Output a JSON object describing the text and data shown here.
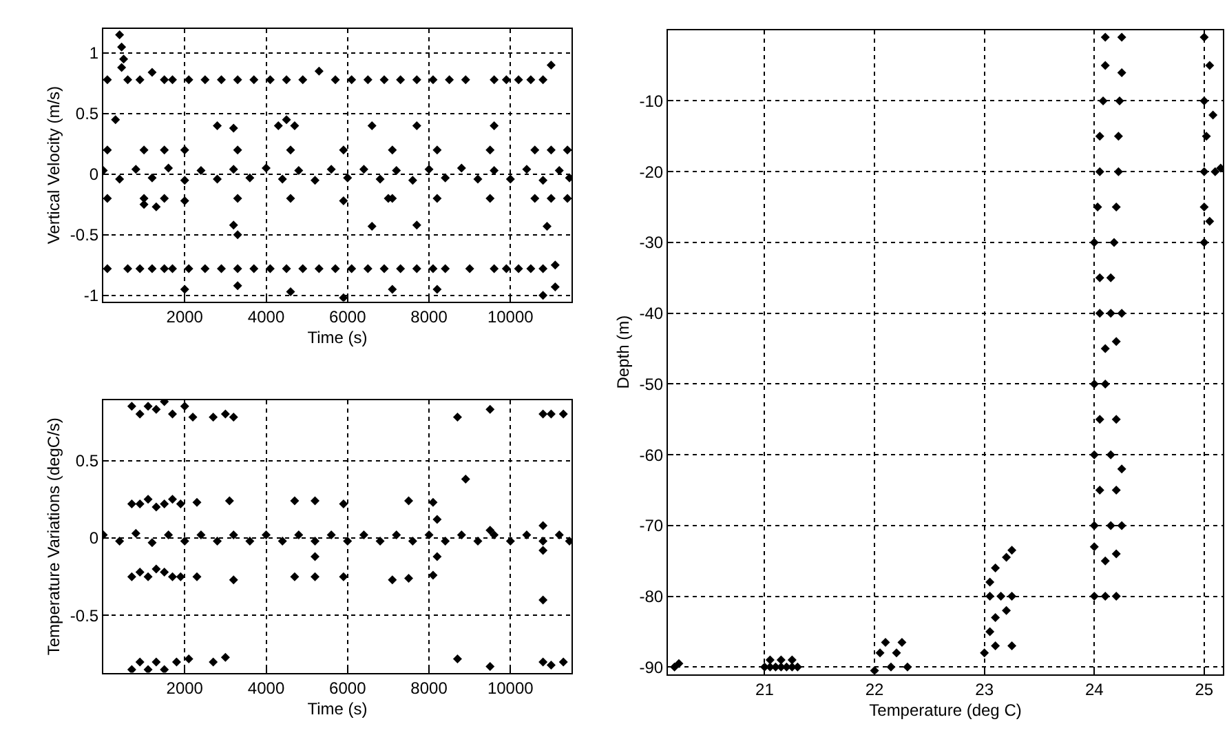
{
  "chart_data": [
    {
      "type": "scatter",
      "xlabel": "Time (s)",
      "ylabel": "Vertical Velocity (m/s)",
      "xlim": [
        0,
        11500
      ],
      "ylim": [
        -1.05,
        1.2
      ],
      "xticks": [
        2000,
        4000,
        6000,
        8000,
        10000
      ],
      "yticks": [
        -1,
        -0.5,
        0,
        0.5,
        1
      ],
      "grid": true,
      "marker": "diamond",
      "series": [
        {
          "color": "#000000",
          "x": [
            100,
            600,
            900,
            1200,
            1500,
            1700,
            2100,
            2500,
            2900,
            3300,
            3700,
            4100,
            4500,
            4900,
            5300,
            5700,
            6100,
            6500,
            6900,
            7300,
            7700,
            8100,
            8500,
            8900,
            9600,
            9900,
            10200,
            10500,
            10800,
            11000,
            400,
            450,
            500,
            450,
            0,
            400,
            800,
            1200,
            1600,
            2000,
            2400,
            2800,
            3200,
            3600,
            4000,
            4400,
            4800,
            5200,
            5600,
            6000,
            6400,
            6800,
            7200,
            7600,
            8000,
            8400,
            8800,
            9200,
            9600,
            10000,
            10400,
            10800,
            11200,
            11450,
            100,
            100,
            1000,
            1000,
            1500,
            1500,
            2000,
            2000,
            3300,
            3300,
            4600,
            4600,
            5900,
            5900,
            7100,
            7100,
            8200,
            8200,
            9500,
            9500,
            10600,
            10600,
            11000,
            11000,
            11400,
            11400,
            100,
            600,
            900,
            1200,
            1500,
            1700,
            2100,
            2500,
            2900,
            3300,
            3700,
            4100,
            4500,
            4900,
            5300,
            5700,
            6100,
            6500,
            6900,
            7300,
            7700,
            8100,
            8400,
            9000,
            9600,
            9900,
            10200,
            10500,
            10800,
            2000,
            3300,
            4600,
            5900,
            7100,
            8200,
            10800,
            11100,
            300,
            2800,
            3200,
            4300,
            4500,
            4700,
            6600,
            7700,
            9600,
            3200,
            3300,
            6600,
            7700,
            10900,
            1000,
            1300,
            7000,
            11100
          ],
          "values": [
            0.78,
            0.78,
            0.78,
            0.84,
            0.78,
            0.78,
            0.78,
            0.78,
            0.78,
            0.78,
            0.78,
            0.78,
            0.78,
            0.78,
            0.85,
            0.78,
            0.78,
            0.78,
            0.78,
            0.78,
            0.78,
            0.78,
            0.78,
            0.78,
            0.78,
            0.78,
            0.78,
            0.78,
            0.78,
            0.9,
            1.15,
            1.05,
            0.95,
            0.88,
            0.03,
            -0.04,
            0.04,
            -0.03,
            0.05,
            -0.05,
            0.03,
            -0.04,
            0.04,
            -0.03,
            0.05,
            -0.04,
            0.03,
            -0.05,
            0.04,
            -0.03,
            0.04,
            -0.04,
            0.03,
            -0.05,
            0.04,
            -0.03,
            0.05,
            -0.04,
            0.03,
            -0.04,
            0.04,
            -0.05,
            0.03,
            -0.03,
            0.2,
            -0.2,
            0.2,
            -0.2,
            0.2,
            -0.2,
            0.2,
            -0.22,
            0.2,
            -0.2,
            0.2,
            -0.2,
            0.2,
            -0.22,
            0.2,
            -0.2,
            0.2,
            -0.2,
            0.2,
            -0.2,
            0.2,
            -0.2,
            0.2,
            -0.2,
            0.2,
            -0.2,
            -0.78,
            -0.78,
            -0.78,
            -0.78,
            -0.78,
            -0.78,
            -0.78,
            -0.78,
            -0.78,
            -0.78,
            -0.78,
            -0.78,
            -0.78,
            -0.78,
            -0.78,
            -0.78,
            -0.78,
            -0.78,
            -0.78,
            -0.78,
            -0.78,
            -0.78,
            -0.78,
            -0.78,
            -0.78,
            -0.78,
            -0.78,
            -0.78,
            -0.78,
            -0.95,
            -0.92,
            -0.97,
            -1.02,
            -0.95,
            -0.95,
            -1.0,
            -0.93,
            0.45,
            0.4,
            0.38,
            0.4,
            0.45,
            0.4,
            0.4,
            0.4,
            0.4,
            -0.42,
            -0.5,
            -0.43,
            -0.42,
            -0.43,
            -0.25,
            -0.27,
            -0.2,
            -0.75
          ]
        }
      ]
    },
    {
      "type": "scatter",
      "xlabel": "Time (s)",
      "ylabel": "Temperature Variations (degC/s)",
      "xlim": [
        0,
        11500
      ],
      "ylim": [
        -0.87,
        0.89
      ],
      "xticks": [
        2000,
        4000,
        6000,
        8000,
        10000
      ],
      "yticks": [
        -0.5,
        0,
        0.5
      ],
      "grid": true,
      "marker": "diamond",
      "series": [
        {
          "color": "#000000",
          "x": [
            0,
            400,
            800,
            1200,
            1600,
            2000,
            2400,
            2800,
            3200,
            3600,
            4000,
            4400,
            4800,
            5200,
            5600,
            6000,
            6400,
            6800,
            7200,
            7600,
            8000,
            8400,
            8800,
            9200,
            9600,
            10000,
            10400,
            10800,
            11200,
            11450,
            700,
            700,
            900,
            900,
            1100,
            1100,
            1300,
            1300,
            1500,
            1500,
            1700,
            1700,
            1900,
            1900,
            2300,
            2300,
            3100,
            3200,
            4700,
            4700,
            5200,
            5200,
            5900,
            5900,
            7500,
            7500,
            8100,
            8100,
            7100,
            700,
            900,
            1100,
            1300,
            1500,
            1700,
            2000,
            2200,
            2700,
            3000,
            3200,
            8700,
            9500,
            10800,
            11000,
            11300,
            700,
            900,
            1100,
            1300,
            1500,
            1800,
            2100,
            2700,
            3000,
            8700,
            9500,
            10800,
            11000,
            11300,
            8900,
            10800,
            5200,
            8200,
            8200,
            10800,
            10800,
            9500
          ],
          "values": [
            0.02,
            -0.02,
            0.03,
            -0.03,
            0.02,
            -0.02,
            0.02,
            -0.02,
            0.02,
            -0.02,
            0.02,
            -0.02,
            0.02,
            -0.02,
            0.02,
            -0.02,
            0.02,
            -0.02,
            0.02,
            -0.02,
            0.02,
            -0.02,
            0.02,
            -0.02,
            0.02,
            -0.02,
            0.02,
            -0.02,
            0.02,
            -0.02,
            0.22,
            -0.25,
            0.22,
            -0.22,
            0.25,
            -0.25,
            0.2,
            -0.2,
            0.22,
            -0.22,
            0.25,
            -0.25,
            0.22,
            -0.25,
            0.23,
            -0.25,
            0.24,
            -0.27,
            0.24,
            -0.25,
            0.24,
            -0.25,
            0.22,
            -0.25,
            0.24,
            -0.26,
            0.23,
            -0.24,
            -0.27,
            0.85,
            0.8,
            0.85,
            0.83,
            0.88,
            0.8,
            0.85,
            0.78,
            0.78,
            0.8,
            0.78,
            0.78,
            0.83,
            0.8,
            0.8,
            0.8,
            -0.85,
            -0.8,
            -0.85,
            -0.8,
            -0.85,
            -0.8,
            -0.78,
            -0.8,
            -0.77,
            -0.78,
            -0.83,
            -0.8,
            -0.82,
            -0.8,
            0.38,
            -0.4,
            -0.12,
            0.12,
            -0.12,
            0.08,
            -0.08,
            0.05
          ]
        }
      ]
    },
    {
      "type": "scatter",
      "xlabel": "Temperature (deg C)",
      "ylabel": "Depth (m)",
      "xlim": [
        20.12,
        25.17
      ],
      "ylim": [
        -91,
        0
      ],
      "xticks": [
        21,
        22,
        23,
        24,
        25
      ],
      "yticks": [
        -90,
        -80,
        -70,
        -60,
        -50,
        -40,
        -30,
        -20,
        -10
      ],
      "grid": true,
      "marker": "diamond",
      "series": [
        {
          "color": "#000000",
          "x": [
            20.18,
            20.22,
            21.0,
            21.05,
            21.1,
            21.15,
            21.2,
            21.25,
            21.3,
            21.05,
            21.15,
            21.25,
            22.0,
            22.05,
            22.1,
            22.15,
            22.2,
            22.25,
            22.3,
            23.05,
            23.1,
            23.2,
            23.25,
            23.05,
            23.15,
            23.25,
            23.05,
            23.1,
            23.2,
            23.1,
            23.25,
            23.0,
            24.1,
            24.25,
            24.1,
            24.25,
            24.08,
            24.23,
            24.05,
            24.22,
            24.05,
            24.22,
            24.03,
            24.2,
            24.0,
            24.18,
            24.05,
            24.15,
            24.05,
            24.15,
            24.25,
            24.1,
            24.2,
            24.0,
            24.1,
            24.05,
            24.2,
            24.0,
            24.15,
            24.25,
            24.05,
            24.2,
            24.0,
            24.15,
            24.25,
            24.1,
            24.2,
            24.0,
            24.1,
            24.2,
            24.0,
            25.0,
            25.05,
            25.0,
            25.08,
            25.02,
            25.0,
            25.1,
            25.15,
            25.0,
            25.05,
            25.0
          ],
          "values": [
            -90,
            -89.5,
            -90,
            -90,
            -90,
            -90,
            -90,
            -90,
            -90,
            -89,
            -89,
            -89,
            -90.5,
            -88,
            -86.5,
            -90,
            -88,
            -86.5,
            -90,
            -78,
            -76,
            -74.5,
            -73.5,
            -80,
            -80,
            -80,
            -85,
            -83,
            -82,
            -87,
            -87,
            -88,
            -1,
            -1,
            -5,
            -6,
            -10,
            -10,
            -15,
            -15,
            -20,
            -20,
            -25,
            -25,
            -30,
            -30,
            -35,
            -35,
            -40,
            -40,
            -40,
            -45,
            -44,
            -50,
            -50,
            -55,
            -55,
            -60,
            -60,
            -62,
            -65,
            -65,
            -70,
            -70,
            -70,
            -75,
            -74,
            -80,
            -80,
            -80,
            -73,
            -1,
            -5,
            -10,
            -12,
            -15,
            -20,
            -20,
            -19.5,
            -25,
            -27,
            -30
          ]
        }
      ]
    }
  ]
}
